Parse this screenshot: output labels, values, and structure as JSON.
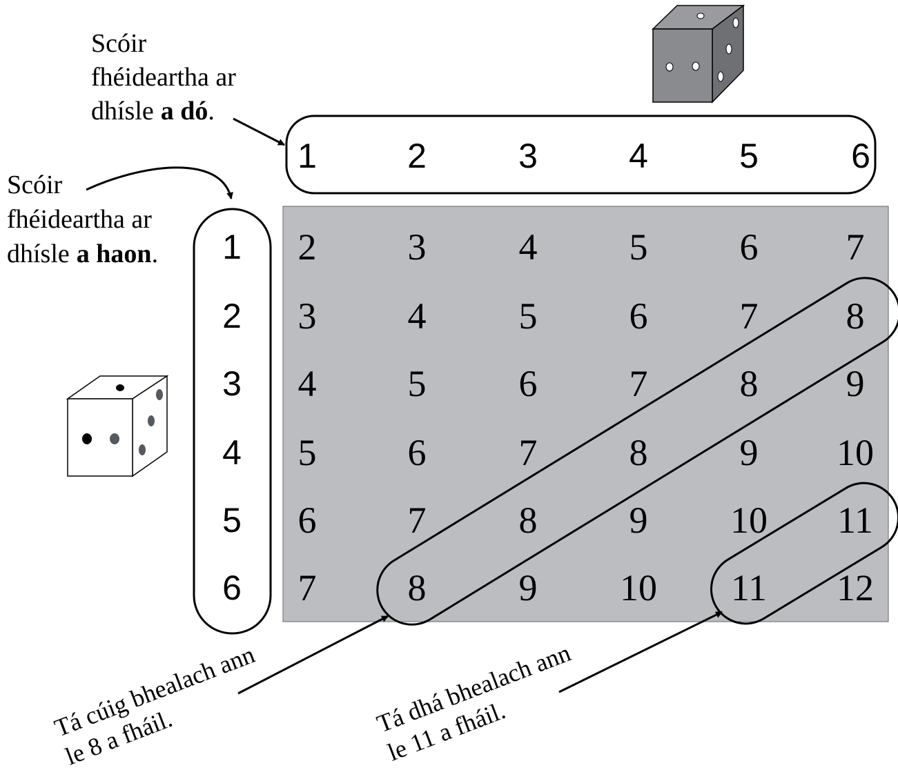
{
  "top_label": {
    "line1": "Scóir",
    "line2": "fhéideartha ar",
    "line3": {
      "plain": "dhísle",
      "bold": "a dó",
      "end": "."
    }
  },
  "left_label": {
    "line1": "Scóir",
    "line2": "fhéideartha ar",
    "line3": {
      "plain": "dhísle",
      "bold": "a haon",
      "end": "."
    }
  },
  "column_headers": [
    1,
    2,
    3,
    4,
    5,
    6
  ],
  "row_headers": [
    1,
    2,
    3,
    4,
    5,
    6
  ],
  "table": {
    "rows": [
      [
        2,
        3,
        4,
        5,
        6,
        7
      ],
      [
        3,
        4,
        5,
        6,
        7,
        8
      ],
      [
        4,
        5,
        6,
        7,
        8,
        9
      ],
      [
        5,
        6,
        7,
        8,
        9,
        10
      ],
      [
        6,
        7,
        8,
        9,
        10,
        11
      ],
      [
        7,
        8,
        9,
        10,
        11,
        12
      ]
    ]
  },
  "annotations": [
    {
      "line1": "Tá cúig bhealach ann",
      "line2": "le 8 a fháil."
    },
    {
      "line1": "Tá dhá bhealach ann",
      "line2": "le 11 a fháil."
    }
  ]
}
